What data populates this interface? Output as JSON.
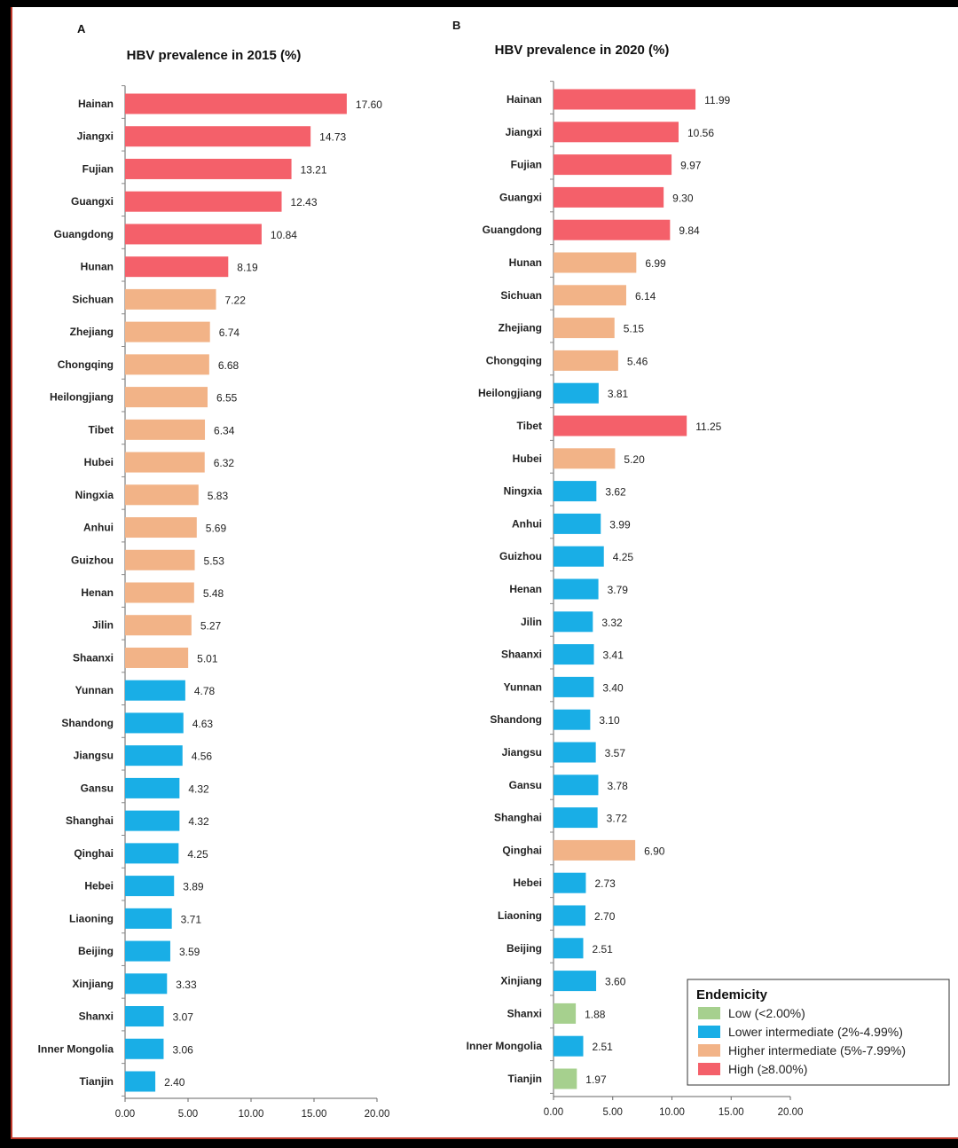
{
  "chart_data": [
    {
      "panel": "A",
      "type": "bar",
      "orientation": "horizontal",
      "title": "HBV prevalence in 2015 (%)",
      "xlim": [
        0,
        20
      ],
      "ticks": [
        "0.00",
        "5.00",
        "10.00",
        "15.00",
        "20.00"
      ],
      "categories": [
        "Hainan",
        "Jiangxi",
        "Fujian",
        "Guangxi",
        "Guangdong",
        "Hunan",
        "Sichuan",
        "Zhejiang",
        "Chongqing",
        "Heilongjiang",
        "Tibet",
        "Hubei",
        "Ningxia",
        "Anhui",
        "Guizhou",
        "Henan",
        "Jilin",
        "Shaanxi",
        "Yunnan",
        "Shandong",
        "Jiangsu",
        "Gansu",
        "Shanghai",
        "Qinghai",
        "Hebei",
        "Liaoning",
        "Beijing",
        "Xinjiang",
        "Shanxi",
        "Inner Mongolia",
        "Tianjin"
      ],
      "values": [
        17.6,
        14.73,
        13.21,
        12.43,
        10.84,
        8.19,
        7.22,
        6.74,
        6.68,
        6.55,
        6.34,
        6.32,
        5.83,
        5.69,
        5.53,
        5.48,
        5.27,
        5.01,
        4.78,
        4.63,
        4.56,
        4.32,
        4.32,
        4.25,
        3.89,
        3.71,
        3.59,
        3.33,
        3.07,
        3.06,
        2.4
      ],
      "labels": [
        "17.60",
        "14.73",
        "13.21",
        "12.43",
        "10.84",
        "8.19",
        "7.22",
        "6.74",
        "6.68",
        "6.55",
        "6.34",
        "6.32",
        "5.83",
        "5.69",
        "5.53",
        "5.48",
        "5.27",
        "5.01",
        "4.78",
        "4.63",
        "4.56",
        "4.32",
        "4.32",
        "4.25",
        "3.89",
        "3.71",
        "3.59",
        "3.33",
        "3.07",
        "3.06",
        "2.40"
      ]
    },
    {
      "panel": "B",
      "type": "bar",
      "orientation": "horizontal",
      "title": "HBV prevalence in 2020 (%)",
      "xlim": [
        0,
        20
      ],
      "ticks": [
        "0.00",
        "5.00",
        "10.00",
        "15.00",
        "20.00"
      ],
      "categories": [
        "Hainan",
        "Jiangxi",
        "Fujian",
        "Guangxi",
        "Guangdong",
        "Hunan",
        "Sichuan",
        "Zhejiang",
        "Chongqing",
        "Heilongjiang",
        "Tibet",
        "Hubei",
        "Ningxia",
        "Anhui",
        "Guizhou",
        "Henan",
        "Jilin",
        "Shaanxi",
        "Yunnan",
        "Shandong",
        "Jiangsu",
        "Gansu",
        "Shanghai",
        "Qinghai",
        "Hebei",
        "Liaoning",
        "Beijing",
        "Xinjiang",
        "Shanxi",
        "Inner Mongolia",
        "Tianjin"
      ],
      "values": [
        11.99,
        10.56,
        9.97,
        9.3,
        9.84,
        6.99,
        6.14,
        5.15,
        5.46,
        3.81,
        11.25,
        5.2,
        3.62,
        3.99,
        4.25,
        3.79,
        3.32,
        3.41,
        3.4,
        3.1,
        3.57,
        3.78,
        3.72,
        6.9,
        2.73,
        2.7,
        2.51,
        3.6,
        1.88,
        2.51,
        1.97
      ],
      "labels": [
        "11.99",
        "10.56",
        "9.97",
        "9.30",
        "9.84",
        "6.99",
        "6.14",
        "5.15",
        "5.46",
        "3.81",
        "11.25",
        "5.20",
        "3.62",
        "3.99",
        "4.25",
        "3.79",
        "3.32",
        "3.41",
        "3.40",
        "3.10",
        "3.57",
        "3.78",
        "3.72",
        "6.90",
        "2.73",
        "2.70",
        "2.51",
        "3.60",
        "1.88",
        "2.51",
        "1.97"
      ]
    }
  ],
  "legend": {
    "title": "Endemicity",
    "entries": [
      {
        "key": "low",
        "label": "Low (<2.00%)",
        "color": "#a6d08e"
      },
      {
        "key": "lower",
        "label": "Lower intermediate (2%-4.99%)",
        "color": "#19aee6"
      },
      {
        "key": "higher",
        "label": "Higher intermediate (5%-7.99%)",
        "color": "#f2b387"
      },
      {
        "key": "high",
        "label": "High (≥8.00%)",
        "color": "#f4606a"
      }
    ]
  }
}
